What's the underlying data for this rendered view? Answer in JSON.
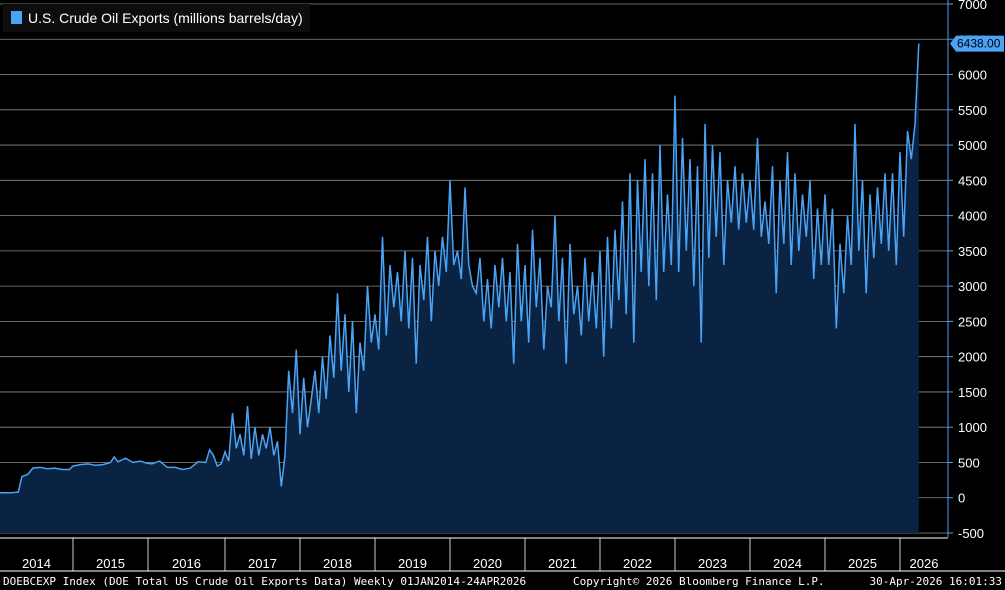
{
  "legend": {
    "label": "U.S. Crude Oil Exports (millions barrels/day)",
    "color": "#4aa3f5"
  },
  "footer": {
    "index_desc": "DOEBCEXP Index (DOE Total US Crude Oil Exports Data) Weekly 01JAN2014-24APR2026",
    "copyright": "Copyright© 2026 Bloomberg Finance L.P.",
    "timestamp": "30-Apr-2026 16:01:33"
  },
  "chart_data": {
    "type": "area",
    "series": [
      {
        "name": "U.S. Crude Oil Exports (millions barrels/day)",
        "color": "#4aa3f5",
        "fill": "#0a2342",
        "last_value": 6438.0,
        "last_value_label": "6438.00",
        "points": [
          [
            2014.0,
            70
          ],
          [
            2014.15,
            70
          ],
          [
            2014.25,
            80
          ],
          [
            2014.3,
            300
          ],
          [
            2014.38,
            330
          ],
          [
            2014.45,
            420
          ],
          [
            2014.55,
            430
          ],
          [
            2014.65,
            410
          ],
          [
            2014.75,
            420
          ],
          [
            2014.85,
            400
          ],
          [
            2014.95,
            400
          ],
          [
            2015.0,
            450
          ],
          [
            2015.1,
            470
          ],
          [
            2015.2,
            480
          ],
          [
            2015.3,
            460
          ],
          [
            2015.4,
            470
          ],
          [
            2015.5,
            500
          ],
          [
            2015.55,
            580
          ],
          [
            2015.6,
            510
          ],
          [
            2015.7,
            560
          ],
          [
            2015.8,
            500
          ],
          [
            2015.9,
            520
          ],
          [
            2015.98,
            490
          ],
          [
            2016.05,
            480
          ],
          [
            2016.15,
            520
          ],
          [
            2016.25,
            430
          ],
          [
            2016.35,
            430
          ],
          [
            2016.45,
            400
          ],
          [
            2016.55,
            420
          ],
          [
            2016.65,
            510
          ],
          [
            2016.75,
            500
          ],
          [
            2016.8,
            680
          ],
          [
            2016.85,
            600
          ],
          [
            2016.9,
            450
          ],
          [
            2016.95,
            480
          ],
          [
            2017.0,
            650
          ],
          [
            2017.05,
            520
          ],
          [
            2017.1,
            1200
          ],
          [
            2017.15,
            700
          ],
          [
            2017.2,
            900
          ],
          [
            2017.25,
            600
          ],
          [
            2017.3,
            1300
          ],
          [
            2017.35,
            550
          ],
          [
            2017.4,
            1000
          ],
          [
            2017.45,
            600
          ],
          [
            2017.5,
            900
          ],
          [
            2017.55,
            700
          ],
          [
            2017.6,
            1000
          ],
          [
            2017.65,
            600
          ],
          [
            2017.7,
            800
          ],
          [
            2017.75,
            160
          ],
          [
            2017.8,
            600
          ],
          [
            2017.85,
            1800
          ],
          [
            2017.9,
            1200
          ],
          [
            2017.95,
            2100
          ],
          [
            2018.0,
            900
          ],
          [
            2018.05,
            1700
          ],
          [
            2018.1,
            1000
          ],
          [
            2018.15,
            1400
          ],
          [
            2018.2,
            1800
          ],
          [
            2018.25,
            1200
          ],
          [
            2018.3,
            2000
          ],
          [
            2018.35,
            1400
          ],
          [
            2018.4,
            2300
          ],
          [
            2018.45,
            1700
          ],
          [
            2018.5,
            2900
          ],
          [
            2018.55,
            1800
          ],
          [
            2018.6,
            2600
          ],
          [
            2018.65,
            1500
          ],
          [
            2018.7,
            2500
          ],
          [
            2018.75,
            1200
          ],
          [
            2018.8,
            2200
          ],
          [
            2018.85,
            1800
          ],
          [
            2018.9,
            3000
          ],
          [
            2018.95,
            2200
          ],
          [
            2019.0,
            2600
          ],
          [
            2019.05,
            2100
          ],
          [
            2019.1,
            3700
          ],
          [
            2019.15,
            2300
          ],
          [
            2019.2,
            3300
          ],
          [
            2019.25,
            2700
          ],
          [
            2019.3,
            3200
          ],
          [
            2019.35,
            2500
          ],
          [
            2019.4,
            3500
          ],
          [
            2019.45,
            2400
          ],
          [
            2019.5,
            3400
          ],
          [
            2019.55,
            1900
          ],
          [
            2019.6,
            3300
          ],
          [
            2019.65,
            2800
          ],
          [
            2019.7,
            3700
          ],
          [
            2019.75,
            2500
          ],
          [
            2019.8,
            3500
          ],
          [
            2019.85,
            3000
          ],
          [
            2019.9,
            3700
          ],
          [
            2019.95,
            3200
          ],
          [
            2020.0,
            4500
          ],
          [
            2020.05,
            3300
          ],
          [
            2020.1,
            3500
          ],
          [
            2020.15,
            3100
          ],
          [
            2020.2,
            4400
          ],
          [
            2020.25,
            3300
          ],
          [
            2020.3,
            3000
          ],
          [
            2020.35,
            2900
          ],
          [
            2020.4,
            3400
          ],
          [
            2020.45,
            2500
          ],
          [
            2020.5,
            3100
          ],
          [
            2020.55,
            2400
          ],
          [
            2020.6,
            3300
          ],
          [
            2020.65,
            2700
          ],
          [
            2020.7,
            3400
          ],
          [
            2020.75,
            2500
          ],
          [
            2020.8,
            3200
          ],
          [
            2020.85,
            1900
          ],
          [
            2020.9,
            3600
          ],
          [
            2020.95,
            2500
          ],
          [
            2021.0,
            3300
          ],
          [
            2021.05,
            2200
          ],
          [
            2021.1,
            3800
          ],
          [
            2021.15,
            2700
          ],
          [
            2021.2,
            3400
          ],
          [
            2021.25,
            2100
          ],
          [
            2021.3,
            3000
          ],
          [
            2021.35,
            2700
          ],
          [
            2021.4,
            4000
          ],
          [
            2021.45,
            2500
          ],
          [
            2021.5,
            3400
          ],
          [
            2021.55,
            1900
          ],
          [
            2021.6,
            3600
          ],
          [
            2021.65,
            2600
          ],
          [
            2021.7,
            3000
          ],
          [
            2021.75,
            2300
          ],
          [
            2021.8,
            3400
          ],
          [
            2021.85,
            2500
          ],
          [
            2021.9,
            3200
          ],
          [
            2021.95,
            2400
          ],
          [
            2022.0,
            3500
          ],
          [
            2022.05,
            2000
          ],
          [
            2022.1,
            3700
          ],
          [
            2022.15,
            2400
          ],
          [
            2022.2,
            3800
          ],
          [
            2022.25,
            2800
          ],
          [
            2022.3,
            4200
          ],
          [
            2022.35,
            2600
          ],
          [
            2022.4,
            4600
          ],
          [
            2022.45,
            2200
          ],
          [
            2022.5,
            4500
          ],
          [
            2022.55,
            3200
          ],
          [
            2022.6,
            4800
          ],
          [
            2022.65,
            3000
          ],
          [
            2022.7,
            4600
          ],
          [
            2022.75,
            2800
          ],
          [
            2022.8,
            5000
          ],
          [
            2022.85,
            3200
          ],
          [
            2022.9,
            4300
          ],
          [
            2022.95,
            3300
          ],
          [
            2023.0,
            5700
          ],
          [
            2023.05,
            3200
          ],
          [
            2023.1,
            5100
          ],
          [
            2023.15,
            3500
          ],
          [
            2023.2,
            4800
          ],
          [
            2023.25,
            3000
          ],
          [
            2023.3,
            4700
          ],
          [
            2023.35,
            2200
          ],
          [
            2023.4,
            5300
          ],
          [
            2023.45,
            3400
          ],
          [
            2023.5,
            5000
          ],
          [
            2023.55,
            3700
          ],
          [
            2023.6,
            4900
          ],
          [
            2023.65,
            3300
          ],
          [
            2023.7,
            4500
          ],
          [
            2023.75,
            3900
          ],
          [
            2023.8,
            4700
          ],
          [
            2023.85,
            3800
          ],
          [
            2023.9,
            4600
          ],
          [
            2023.95,
            3900
          ],
          [
            2024.0,
            4500
          ],
          [
            2024.05,
            3800
          ],
          [
            2024.1,
            5100
          ],
          [
            2024.15,
            3700
          ],
          [
            2024.2,
            4200
          ],
          [
            2024.25,
            3600
          ],
          [
            2024.3,
            4700
          ],
          [
            2024.35,
            2900
          ],
          [
            2024.4,
            4500
          ],
          [
            2024.45,
            3600
          ],
          [
            2024.5,
            4900
          ],
          [
            2024.55,
            3300
          ],
          [
            2024.6,
            4600
          ],
          [
            2024.65,
            3500
          ],
          [
            2024.7,
            4300
          ],
          [
            2024.75,
            3700
          ],
          [
            2024.8,
            4500
          ],
          [
            2024.85,
            3100
          ],
          [
            2024.9,
            4100
          ],
          [
            2024.95,
            3300
          ],
          [
            2025.0,
            4300
          ],
          [
            2025.05,
            3300
          ],
          [
            2025.1,
            4100
          ],
          [
            2025.15,
            2400
          ],
          [
            2025.2,
            3600
          ],
          [
            2025.25,
            2900
          ],
          [
            2025.3,
            4000
          ],
          [
            2025.35,
            3300
          ],
          [
            2025.4,
            5300
          ],
          [
            2025.45,
            3500
          ],
          [
            2025.5,
            4500
          ],
          [
            2025.55,
            2900
          ],
          [
            2025.6,
            4300
          ],
          [
            2025.65,
            3400
          ],
          [
            2025.7,
            4400
          ],
          [
            2025.75,
            3600
          ],
          [
            2025.8,
            4600
          ],
          [
            2025.85,
            3500
          ],
          [
            2025.9,
            4600
          ],
          [
            2025.95,
            3300
          ],
          [
            2026.0,
            4900
          ],
          [
            2026.05,
            3700
          ],
          [
            2026.1,
            5200
          ],
          [
            2026.15,
            4800
          ],
          [
            2026.2,
            5300
          ],
          [
            2026.25,
            6438
          ]
        ]
      }
    ],
    "x_ticks": [
      {
        "label": "2014",
        "pos": 2014.0
      },
      {
        "label": "2015",
        "pos": 2015.0
      },
      {
        "label": "2016",
        "pos": 2016.0
      },
      {
        "label": "2017",
        "pos": 2017.0
      },
      {
        "label": "2018",
        "pos": 2018.0
      },
      {
        "label": "2019",
        "pos": 2019.0
      },
      {
        "label": "2020",
        "pos": 2020.0
      },
      {
        "label": "2021",
        "pos": 2021.0
      },
      {
        "label": "2022",
        "pos": 2022.0
      },
      {
        "label": "2023",
        "pos": 2023.0
      },
      {
        "label": "2024",
        "pos": 2024.0
      },
      {
        "label": "2025",
        "pos": 2025.0
      },
      {
        "label": "2026",
        "pos": 2026.0
      }
    ],
    "y_ticks": [
      7000,
      6500,
      6000,
      5500,
      5000,
      4500,
      4000,
      3500,
      3000,
      2500,
      2000,
      1500,
      1000,
      500,
      0,
      -500
    ],
    "xlim": [
      2014.0,
      2026.3
    ],
    "ylim": [
      -500,
      7000
    ],
    "grid": true,
    "legend_position": "top-left",
    "axis_color": "#4aa3f5",
    "gridline_color": "#ffffff"
  }
}
